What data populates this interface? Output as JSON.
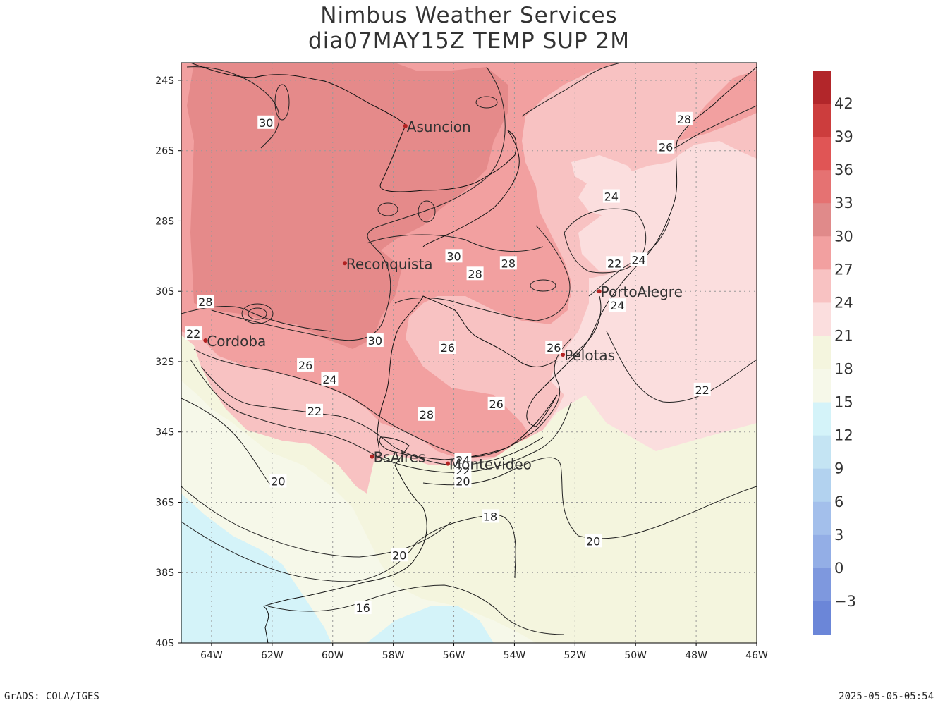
{
  "title": {
    "line1": "Nimbus Weather Services",
    "line2": "dia07MAY15Z TEMP SUP 2M"
  },
  "footer": {
    "left": "GrADS: COLA/IGES",
    "right": "2025-05-05-05:54"
  },
  "map": {
    "lon_range": [
      -65,
      -46
    ],
    "lat_range": [
      -40,
      -23.5
    ],
    "lon_ticks": [
      {
        "lon": -64,
        "label": "64W"
      },
      {
        "lon": -62,
        "label": "62W"
      },
      {
        "lon": -60,
        "label": "60W"
      },
      {
        "lon": -58,
        "label": "58W"
      },
      {
        "lon": -56,
        "label": "56W"
      },
      {
        "lon": -54,
        "label": "54W"
      },
      {
        "lon": -52,
        "label": "52W"
      },
      {
        "lon": -50,
        "label": "50W"
      },
      {
        "lon": -48,
        "label": "48W"
      },
      {
        "lon": -46,
        "label": "46W"
      }
    ],
    "lat_ticks": [
      {
        "lat": -24,
        "label": "24S"
      },
      {
        "lat": -26,
        "label": "26S"
      },
      {
        "lat": -28,
        "label": "28S"
      },
      {
        "lat": -30,
        "label": "30S"
      },
      {
        "lat": -32,
        "label": "32S"
      },
      {
        "lat": -34,
        "label": "34S"
      },
      {
        "lat": -36,
        "label": "36S"
      },
      {
        "lat": -38,
        "label": "38S"
      },
      {
        "lat": -40,
        "label": "40S"
      }
    ],
    "cities": [
      {
        "name": "Asuncion",
        "lon": -57.6,
        "lat": -25.3
      },
      {
        "name": "Reconquista",
        "lon": -59.6,
        "lat": -29.2
      },
      {
        "name": "Cordoba",
        "lon": -64.2,
        "lat": -31.4
      },
      {
        "name": "PortoAlegre",
        "lon": -51.2,
        "lat": -30.0
      },
      {
        "name": "Pelotas",
        "lon": -52.4,
        "lat": -31.8
      },
      {
        "name": "BsAires",
        "lon": -58.7,
        "lat": -34.7
      },
      {
        "name": "Montevideo",
        "lon": -56.2,
        "lat": -34.9
      }
    ],
    "contour_labels": [
      {
        "text": "30",
        "lon": -62.2,
        "lat": -25.2
      },
      {
        "text": "30",
        "lon": -56.0,
        "lat": -29.0
      },
      {
        "text": "30",
        "lon": -58.6,
        "lat": -31.4
      },
      {
        "text": "28",
        "lon": -64.2,
        "lat": -30.3
      },
      {
        "text": "28",
        "lon": -55.3,
        "lat": -29.5
      },
      {
        "text": "28",
        "lon": -54.2,
        "lat": -29.2
      },
      {
        "text": "28",
        "lon": -56.9,
        "lat": -33.5
      },
      {
        "text": "28",
        "lon": -48.4,
        "lat": -25.1
      },
      {
        "text": "26",
        "lon": -60.9,
        "lat": -32.1
      },
      {
        "text": "26",
        "lon": -56.2,
        "lat": -31.6
      },
      {
        "text": "26",
        "lon": -54.6,
        "lat": -33.2
      },
      {
        "text": "26",
        "lon": -52.7,
        "lat": -31.6
      },
      {
        "text": "26",
        "lon": -49.0,
        "lat": -25.9
      },
      {
        "text": "24",
        "lon": -60.1,
        "lat": -32.5
      },
      {
        "text": "24",
        "lon": -55.7,
        "lat": -34.8
      },
      {
        "text": "24",
        "lon": -50.8,
        "lat": -27.3
      },
      {
        "text": "24",
        "lon": -49.9,
        "lat": -29.1
      },
      {
        "text": "24",
        "lon": -50.6,
        "lat": -30.4
      },
      {
        "text": "22",
        "lon": -64.6,
        "lat": -31.2
      },
      {
        "text": "22",
        "lon": -60.6,
        "lat": -33.4
      },
      {
        "text": "22",
        "lon": -55.7,
        "lat": -35.1
      },
      {
        "text": "22",
        "lon": -50.7,
        "lat": -29.2
      },
      {
        "text": "22",
        "lon": -47.8,
        "lat": -32.8
      },
      {
        "text": "20",
        "lon": -61.8,
        "lat": -35.4
      },
      {
        "text": "20",
        "lon": -55.7,
        "lat": -35.4
      },
      {
        "text": "20",
        "lon": -57.8,
        "lat": -37.5
      },
      {
        "text": "20",
        "lon": -51.4,
        "lat": -37.1
      },
      {
        "text": "18",
        "lon": -54.8,
        "lat": -36.4
      },
      {
        "text": "16",
        "lon": -59.0,
        "lat": -39.0
      }
    ]
  },
  "colorbar": {
    "labels": [
      "42",
      "39",
      "36",
      "33",
      "30",
      "27",
      "24",
      "21",
      "18",
      "15",
      "12",
      "9",
      "6",
      "3",
      "0",
      "−3"
    ],
    "colors": [
      "#b2262a",
      "#cc3d3d",
      "#e05555",
      "#e57272",
      "#e08a8a",
      "#f2a0a0",
      "#f8c2c2",
      "#fbdede",
      "#f4f5de",
      "#f6f8e9",
      "#d4f3f9",
      "#c4e4f3",
      "#b2d2ef",
      "#a3bfeb",
      "#93aee6",
      "#7e98de",
      "#6b86d8"
    ]
  }
}
